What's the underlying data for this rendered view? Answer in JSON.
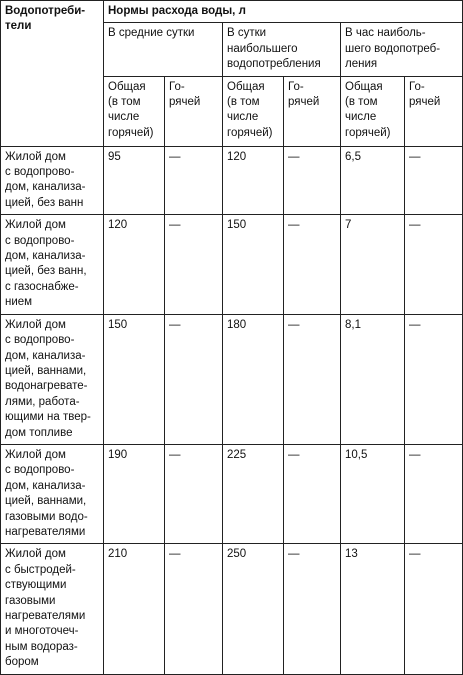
{
  "header": {
    "consumers": "Водопотреби-\nтели",
    "norms": "Нормы расхода воды, л",
    "avg_day": "В средние сутки",
    "max_day": "В сутки\nнаибольшего\nводопотребления",
    "max_hour": "В час наиболь-\nшего водопотреб-\nления",
    "total": "Общая\n(в том\nчисле\nгорячей)",
    "hot": "Го-\nрячей"
  },
  "rows": [
    {
      "consumer": "Жилой дом\nс водопрово-\nдом, канализа-\nцией, без ванн",
      "avg_total": "95",
      "avg_hot": "—",
      "maxday_total": "120",
      "maxday_hot": "—",
      "maxhour_total": "6,5",
      "maxhour_hot": "—"
    },
    {
      "consumer": "Жилой дом\nс водопрово-\nдом, канализа-\nцией, без ванн,\nс газоснабже-\nнием",
      "avg_total": "120",
      "avg_hot": "—",
      "maxday_total": "150",
      "maxday_hot": "—",
      "maxhour_total": "7",
      "maxhour_hot": "—"
    },
    {
      "consumer": "Жилой дом\nс водопрово-\nдом, канализа-\nцией, ваннами,\nводонагревате-\nлями, работа-\nющими на твер-\nдом топливе",
      "avg_total": "150",
      "avg_hot": "—",
      "maxday_total": "180",
      "maxday_hot": "—",
      "maxhour_total": "8,1",
      "maxhour_hot": "—"
    },
    {
      "consumer": "Жилой дом\nс водопрово-\nдом, канализа-\nцией, ваннами,\nгазовыми водо-\nнагревателями",
      "avg_total": "190",
      "avg_hot": "—",
      "maxday_total": "225",
      "maxday_hot": "—",
      "maxhour_total": "10,5",
      "maxhour_hot": "—"
    },
    {
      "consumer": "Жилой дом\nс быстродей-\nствующими\nгазовыми\nнагревателями\nи многоточеч-\nным водораз-\nбором",
      "avg_total": "210",
      "avg_hot": "—",
      "maxday_total": "250",
      "maxday_hot": "—",
      "maxhour_total": "13",
      "maxhour_hot": "—"
    }
  ]
}
